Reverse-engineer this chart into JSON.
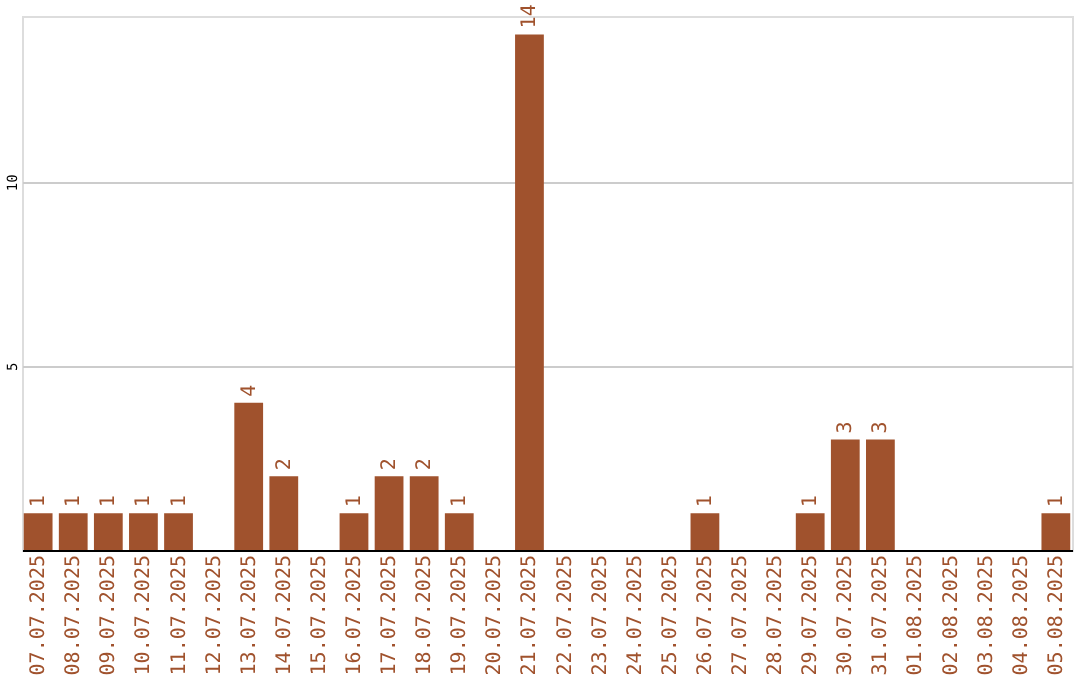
{
  "chart_data": {
    "type": "bar",
    "categories": [
      "07.07.2025",
      "08.07.2025",
      "09.07.2025",
      "10.07.2025",
      "11.07.2025",
      "12.07.2025",
      "13.07.2025",
      "14.07.2025",
      "15.07.2025",
      "16.07.2025",
      "17.07.2025",
      "18.07.2025",
      "19.07.2025",
      "20.07.2025",
      "21.07.2025",
      "22.07.2025",
      "23.07.2025",
      "24.07.2025",
      "25.07.2025",
      "26.07.2025",
      "27.07.2025",
      "28.07.2025",
      "29.07.2025",
      "30.07.2025",
      "31.07.2025",
      "01.08.2025",
      "02.08.2025",
      "03.08.2025",
      "04.08.2025",
      "05.08.2025"
    ],
    "values": [
      1,
      1,
      1,
      1,
      1,
      0,
      4,
      2,
      0,
      1,
      2,
      2,
      1,
      0,
      14,
      0,
      0,
      0,
      0,
      1,
      0,
      0,
      1,
      3,
      3,
      0,
      0,
      0,
      0,
      1
    ],
    "value_labels": [
      "1",
      "1",
      "1",
      "1",
      "1",
      null,
      "4",
      "2",
      null,
      "1",
      "2",
      "2",
      "1",
      null,
      "14",
      null,
      null,
      null,
      null,
      "1",
      null,
      null,
      "1",
      "3",
      "3",
      null,
      null,
      null,
      null,
      "1"
    ],
    "color": "#a0522d",
    "ylim": [
      0,
      14.5
    ],
    "yticks": [
      5,
      10
    ],
    "grid": "y"
  }
}
